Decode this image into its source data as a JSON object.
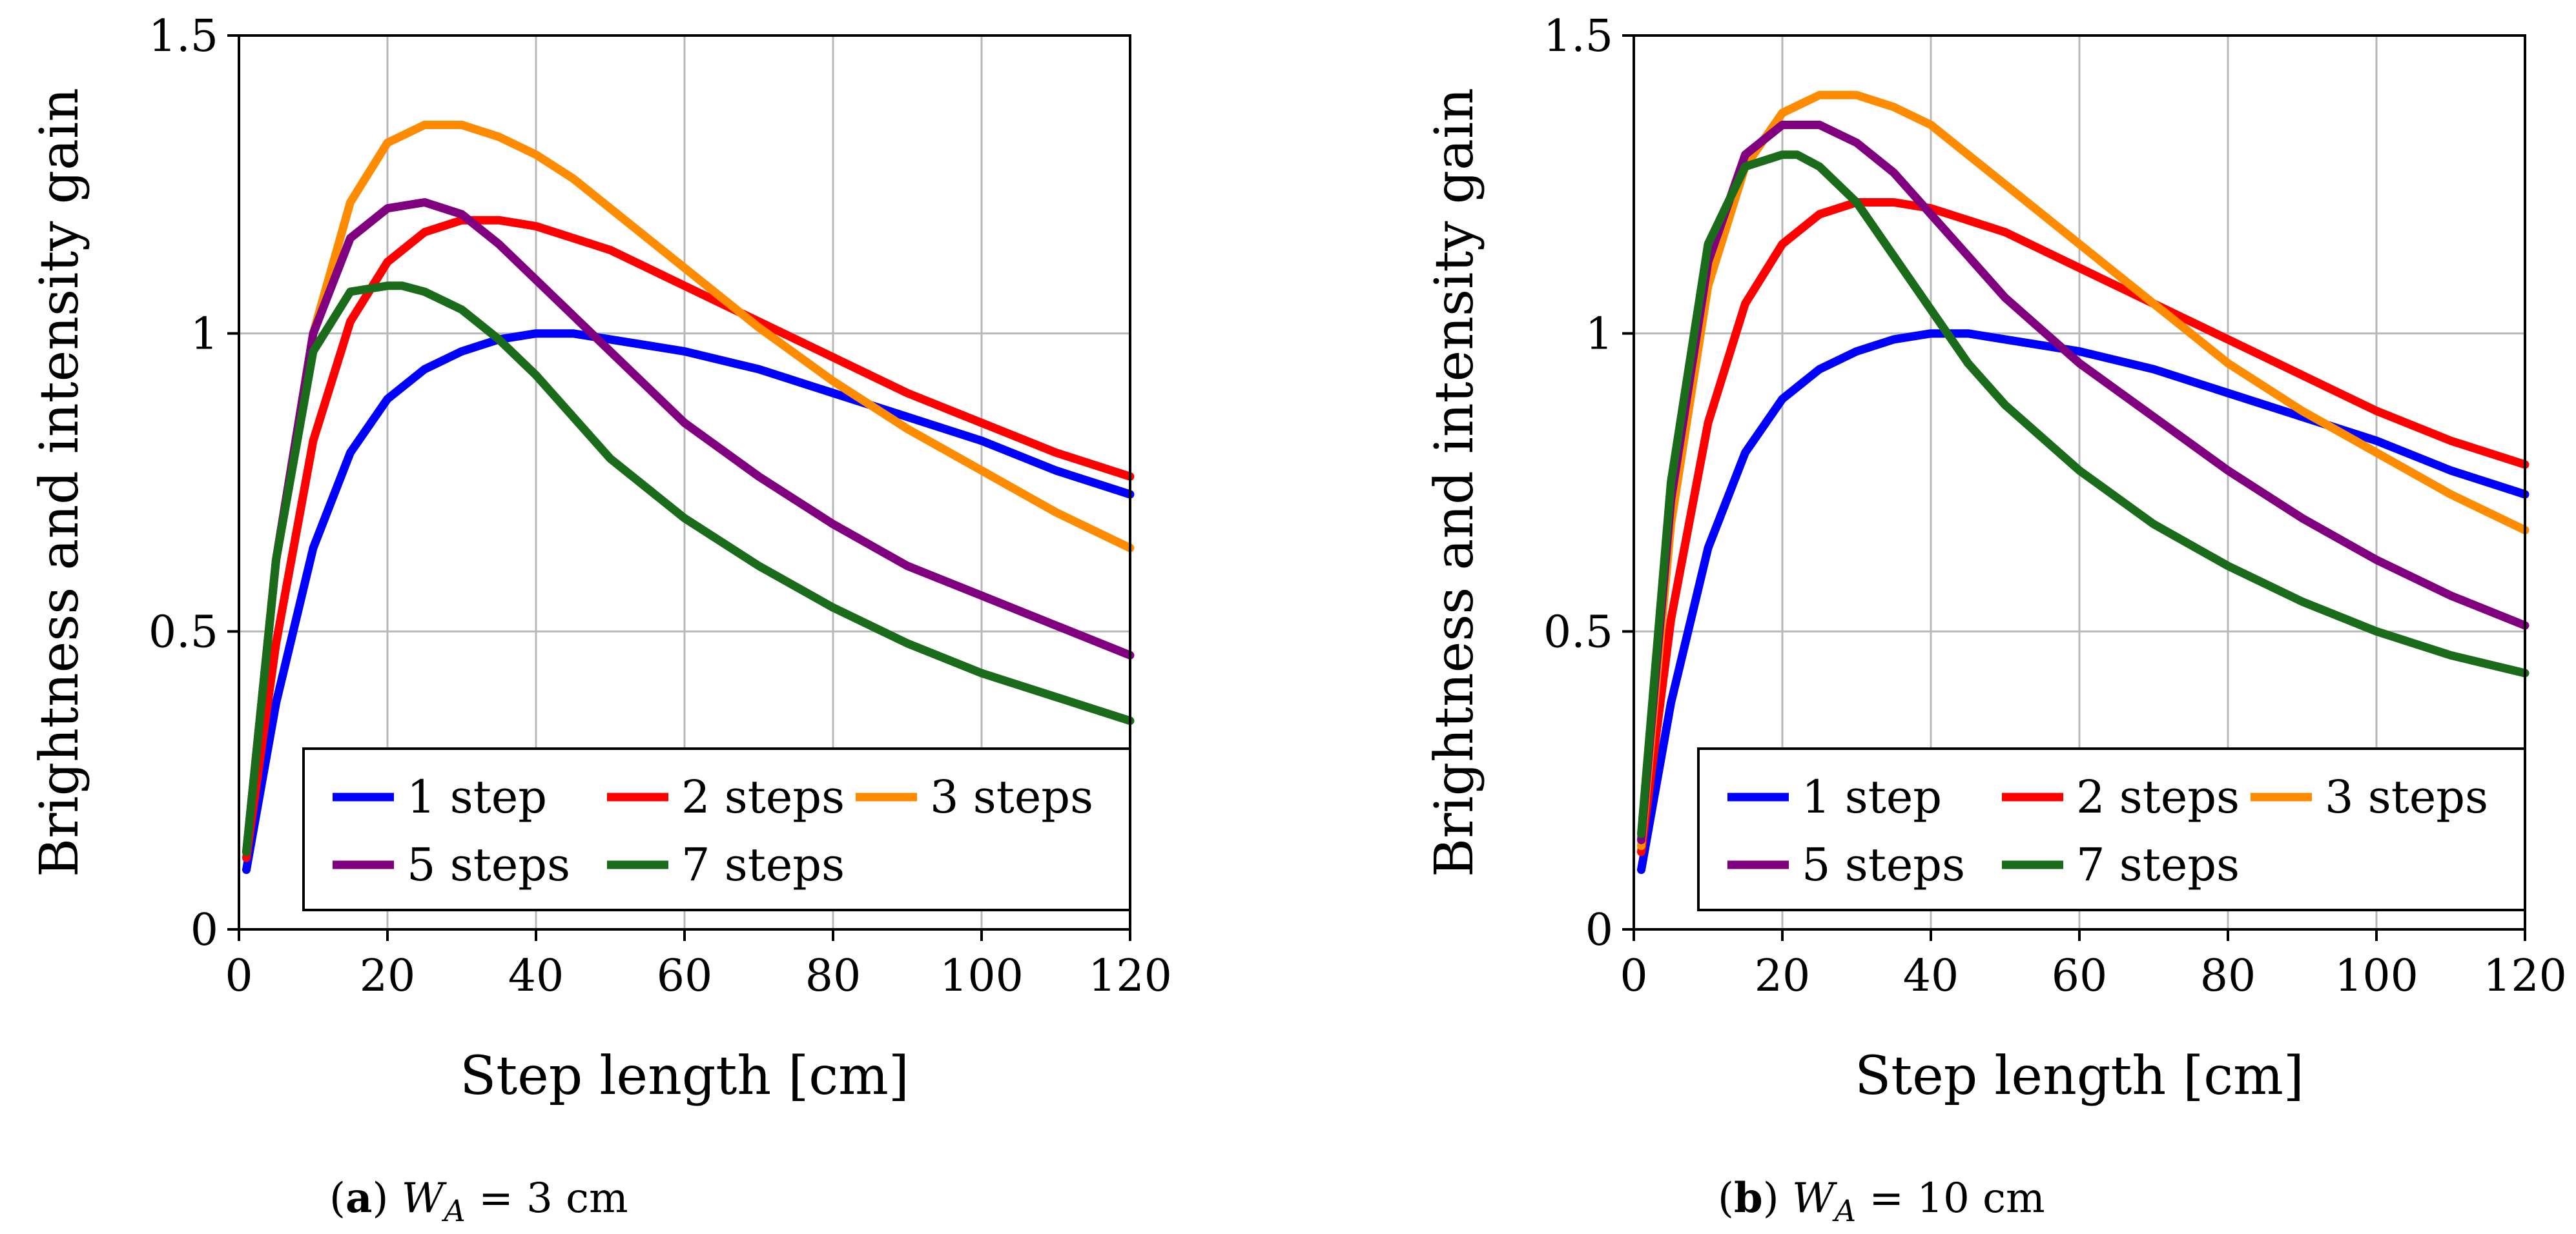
{
  "chart_data": [
    {
      "type": "line",
      "caption": {
        "letter": "a",
        "var": "W",
        "sub": "A",
        "rest": " = 3 cm"
      },
      "xlabel": "Step length [cm]",
      "ylabel": "Brightness and intensity gain",
      "xlim": [
        0,
        120
      ],
      "ylim": [
        0,
        1.5
      ],
      "xticks": [
        0,
        20,
        40,
        60,
        80,
        100,
        120
      ],
      "yticks": [
        0,
        0.5,
        1,
        1.5
      ],
      "ytick_labels": [
        "0",
        "0.5",
        "1",
        "1.5"
      ],
      "grid": true,
      "legend_position": "lower-right",
      "series": [
        {
          "name": "1 step",
          "color": "#0000ff",
          "x": [
            1,
            5,
            10,
            15,
            20,
            25,
            30,
            35,
            40,
            45,
            50,
            60,
            70,
            80,
            90,
            100,
            110,
            120
          ],
          "y": [
            0.1,
            0.38,
            0.64,
            0.8,
            0.89,
            0.94,
            0.97,
            0.99,
            1.0,
            1.0,
            0.99,
            0.97,
            0.94,
            0.9,
            0.86,
            0.82,
            0.77,
            0.73
          ]
        },
        {
          "name": "2 steps",
          "color": "#ff0000",
          "x": [
            1,
            5,
            10,
            15,
            20,
            25,
            30,
            35,
            40,
            45,
            50,
            60,
            70,
            80,
            90,
            100,
            110,
            120
          ],
          "y": [
            0.12,
            0.48,
            0.82,
            1.02,
            1.12,
            1.17,
            1.19,
            1.19,
            1.18,
            1.16,
            1.14,
            1.08,
            1.02,
            0.96,
            0.9,
            0.85,
            0.8,
            0.76
          ]
        },
        {
          "name": "3 steps",
          "color": "#ff8c00",
          "x": [
            1,
            5,
            10,
            15,
            20,
            25,
            30,
            35,
            40,
            45,
            50,
            60,
            70,
            80,
            90,
            100,
            110,
            120
          ],
          "y": [
            0.13,
            0.62,
            1.0,
            1.22,
            1.32,
            1.35,
            1.35,
            1.33,
            1.3,
            1.26,
            1.21,
            1.11,
            1.01,
            0.92,
            0.84,
            0.77,
            0.7,
            0.64
          ]
        },
        {
          "name": "5 steps",
          "color": "#800080",
          "x": [
            1,
            5,
            10,
            15,
            20,
            25,
            30,
            35,
            40,
            45,
            50,
            60,
            70,
            80,
            90,
            100,
            110,
            120
          ],
          "y": [
            0.13,
            0.62,
            1.0,
            1.16,
            1.21,
            1.22,
            1.2,
            1.15,
            1.09,
            1.03,
            0.97,
            0.85,
            0.76,
            0.68,
            0.61,
            0.56,
            0.51,
            0.46
          ]
        },
        {
          "name": "7 steps",
          "color": "#1a6b1a",
          "x": [
            1,
            5,
            10,
            15,
            20,
            22,
            25,
            30,
            35,
            40,
            45,
            50,
            60,
            70,
            80,
            90,
            100,
            110,
            120
          ],
          "y": [
            0.13,
            0.62,
            0.97,
            1.07,
            1.08,
            1.08,
            1.07,
            1.04,
            0.99,
            0.93,
            0.86,
            0.79,
            0.69,
            0.61,
            0.54,
            0.48,
            0.43,
            0.39,
            0.35
          ]
        }
      ]
    },
    {
      "type": "line",
      "caption": {
        "letter": "b",
        "var": "W",
        "sub": "A",
        "rest": " = 10 cm"
      },
      "xlabel": "Step length [cm]",
      "ylabel": "Brightness and intensity gain",
      "xlim": [
        0,
        120
      ],
      "ylim": [
        0,
        1.5
      ],
      "xticks": [
        0,
        20,
        40,
        60,
        80,
        100,
        120
      ],
      "yticks": [
        0,
        0.5,
        1,
        1.5
      ],
      "ytick_labels": [
        "0",
        "0.5",
        "1",
        "1.5"
      ],
      "grid": true,
      "legend_position": "lower-right",
      "series": [
        {
          "name": "1 step",
          "color": "#0000ff",
          "x": [
            1,
            5,
            10,
            15,
            20,
            25,
            30,
            35,
            40,
            45,
            50,
            60,
            70,
            80,
            90,
            100,
            110,
            120
          ],
          "y": [
            0.1,
            0.38,
            0.64,
            0.8,
            0.89,
            0.94,
            0.97,
            0.99,
            1.0,
            1.0,
            0.99,
            0.97,
            0.94,
            0.9,
            0.86,
            0.82,
            0.77,
            0.73
          ]
        },
        {
          "name": "2 steps",
          "color": "#ff0000",
          "x": [
            1,
            5,
            10,
            15,
            20,
            25,
            30,
            35,
            40,
            45,
            50,
            60,
            70,
            80,
            90,
            100,
            110,
            120
          ],
          "y": [
            0.13,
            0.52,
            0.85,
            1.05,
            1.15,
            1.2,
            1.22,
            1.22,
            1.21,
            1.19,
            1.17,
            1.11,
            1.05,
            0.99,
            0.93,
            0.87,
            0.82,
            0.78
          ]
        },
        {
          "name": "3 steps",
          "color": "#ff8c00",
          "x": [
            1,
            5,
            10,
            15,
            20,
            25,
            30,
            35,
            40,
            45,
            50,
            60,
            70,
            80,
            90,
            100,
            110,
            120
          ],
          "y": [
            0.14,
            0.68,
            1.08,
            1.28,
            1.37,
            1.4,
            1.4,
            1.38,
            1.35,
            1.3,
            1.25,
            1.15,
            1.05,
            0.95,
            0.87,
            0.8,
            0.73,
            0.67
          ]
        },
        {
          "name": "5 steps",
          "color": "#800080",
          "x": [
            1,
            5,
            10,
            15,
            20,
            25,
            30,
            35,
            40,
            45,
            50,
            60,
            70,
            80,
            90,
            100,
            110,
            120
          ],
          "y": [
            0.15,
            0.72,
            1.12,
            1.3,
            1.35,
            1.35,
            1.32,
            1.27,
            1.2,
            1.13,
            1.06,
            0.95,
            0.86,
            0.77,
            0.69,
            0.62,
            0.56,
            0.51
          ]
        },
        {
          "name": "7 steps",
          "color": "#1a6b1a",
          "x": [
            1,
            5,
            10,
            15,
            20,
            22,
            25,
            30,
            35,
            40,
            45,
            50,
            60,
            70,
            80,
            90,
            100,
            110,
            120
          ],
          "y": [
            0.16,
            0.75,
            1.15,
            1.28,
            1.3,
            1.3,
            1.28,
            1.22,
            1.13,
            1.04,
            0.95,
            0.88,
            0.77,
            0.68,
            0.61,
            0.55,
            0.5,
            0.46,
            0.43
          ]
        }
      ]
    }
  ]
}
